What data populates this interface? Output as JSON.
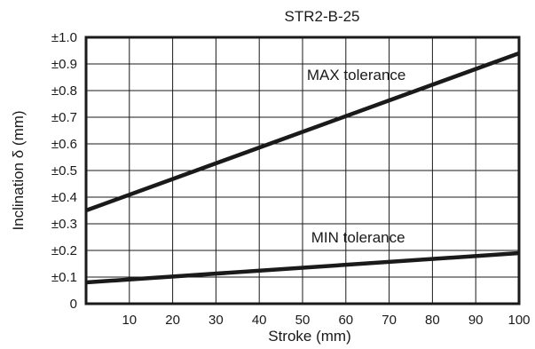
{
  "chart_data": {
    "type": "line",
    "title": "STR2-B-25",
    "xlabel": "Stroke (mm)",
    "ylabel": "Inclination δ (mm)",
    "xlim": [
      0,
      100
    ],
    "ylim": [
      0,
      1.0
    ],
    "x_ticks": [
      {
        "value": 10,
        "label": "10"
      },
      {
        "value": 20,
        "label": "20"
      },
      {
        "value": 30,
        "label": "30"
      },
      {
        "value": 40,
        "label": "40"
      },
      {
        "value": 50,
        "label": "50"
      },
      {
        "value": 60,
        "label": "60"
      },
      {
        "value": 70,
        "label": "70"
      },
      {
        "value": 80,
        "label": "80"
      },
      {
        "value": 90,
        "label": "90"
      },
      {
        "value": 100,
        "label": "100"
      }
    ],
    "y_ticks": [
      {
        "value": 0,
        "label": "0"
      },
      {
        "value": 0.1,
        "label": "±0.1"
      },
      {
        "value": 0.2,
        "label": "±0.2"
      },
      {
        "value": 0.3,
        "label": "±0.3"
      },
      {
        "value": 0.4,
        "label": "±0.4"
      },
      {
        "value": 0.5,
        "label": "±0.5"
      },
      {
        "value": 0.6,
        "label": "±0.6"
      },
      {
        "value": 0.7,
        "label": "±0.7"
      },
      {
        "value": 0.8,
        "label": "±0.8"
      },
      {
        "value": 0.9,
        "label": "±0.9"
      },
      {
        "value": 1.0,
        "label": "±1.0"
      }
    ],
    "grid": true,
    "grid_x": [
      10,
      20,
      30,
      40,
      50,
      60,
      70,
      80,
      90
    ],
    "grid_y": [
      0.1,
      0.2,
      0.3,
      0.4,
      0.5,
      0.6,
      0.7,
      0.8,
      0.9
    ],
    "series": [
      {
        "name": "MAX tolerance",
        "x": [
          0,
          100
        ],
        "y": [
          0.35,
          0.94
        ],
        "color": "#1a1a1a"
      },
      {
        "name": "MIN tolerance",
        "x": [
          0,
          100
        ],
        "y": [
          0.08,
          0.19
        ],
        "color": "#1a1a1a"
      }
    ],
    "annotations": [
      {
        "text": "MAX tolerance",
        "series": 0
      },
      {
        "text": "MIN tolerance",
        "series": 1
      }
    ]
  }
}
